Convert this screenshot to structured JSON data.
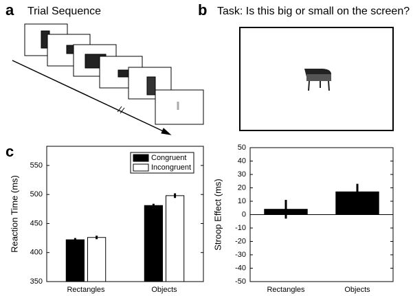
{
  "panel_labels": [
    "a",
    "b",
    "c"
  ],
  "trial_sequence_title": "Trial Sequence",
  "task_title": "Task: Is this big or small on the screen?",
  "chart_data": [
    {
      "type": "bar",
      "ylabel": "Reaction Time (ms)",
      "categories": [
        "Rectangles",
        "Objects"
      ],
      "series": [
        {
          "name": "Congruent",
          "color": "#000000",
          "values": [
            422,
            481
          ],
          "errors": [
            3,
            3
          ]
        },
        {
          "name": "Incongruent",
          "color": "#ffffff",
          "values": [
            426,
            498
          ],
          "errors": [
            3,
            4
          ]
        }
      ],
      "ylim": [
        350,
        583
      ],
      "yticks": [
        350,
        400,
        450,
        500,
        550
      ],
      "legend": "upper right"
    },
    {
      "type": "bar",
      "ylabel": "Stroop Effect (ms)",
      "categories": [
        "Rectangles",
        "Objects"
      ],
      "color": "#000000",
      "values": [
        4,
        17
      ],
      "errors": [
        7,
        6
      ],
      "ylim": [
        -50,
        50
      ],
      "yticks": [
        -50,
        -40,
        -30,
        -20,
        -10,
        0,
        10,
        20,
        30,
        40,
        50
      ]
    }
  ]
}
